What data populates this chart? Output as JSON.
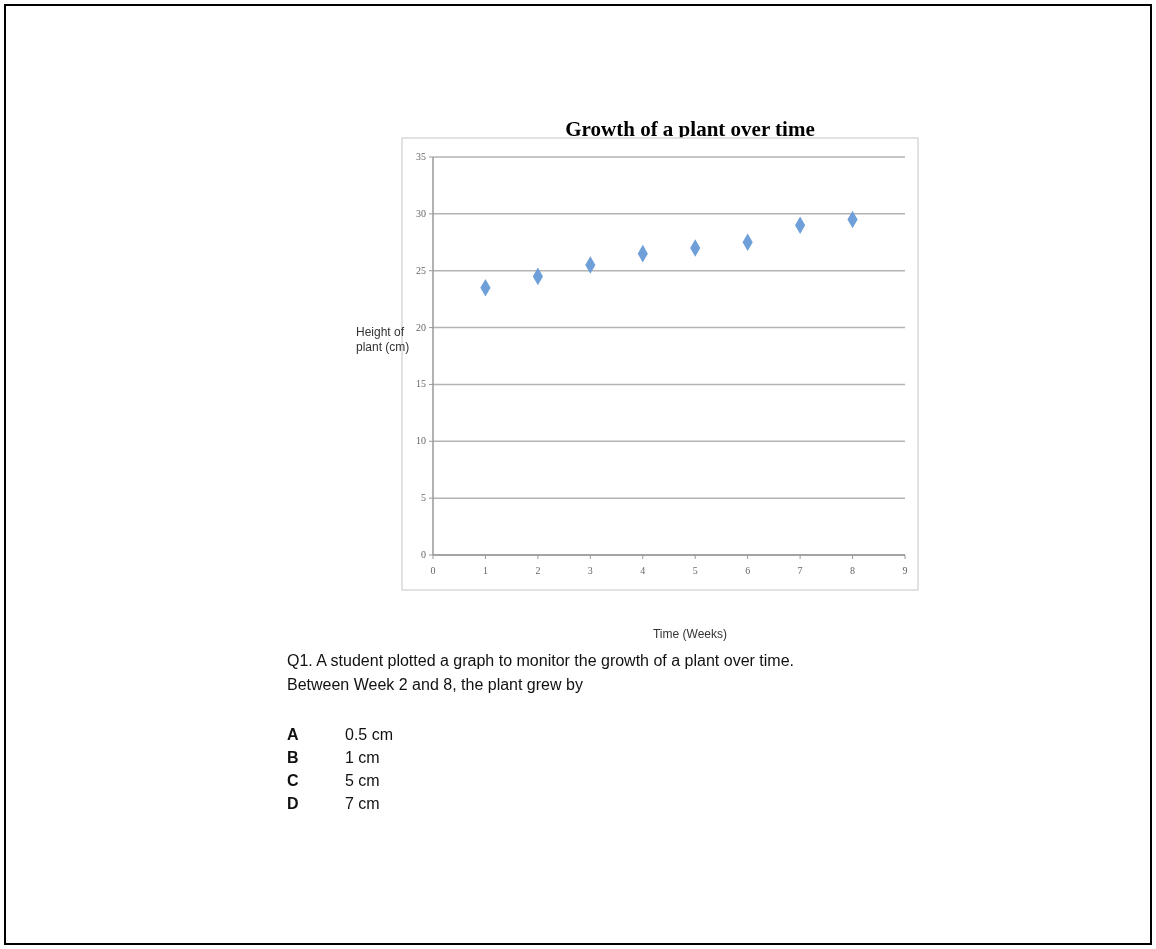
{
  "chart_data": {
    "type": "scatter",
    "title": "Growth of a plant over time",
    "xlabel": "Time (Weeks)",
    "ylabel": "Height of plant (cm)",
    "x": [
      1,
      2,
      3,
      4,
      5,
      6,
      7,
      8
    ],
    "series": [
      {
        "color": "#6f9fd8",
        "values": [
          23.5,
          24.5,
          25.5,
          26.5,
          27,
          27.5,
          29,
          29.5
        ]
      }
    ],
    "xlim": [
      0,
      9
    ],
    "xticks": [
      0,
      1,
      2,
      3,
      4,
      5,
      6,
      7,
      8,
      9
    ],
    "ylim": [
      0,
      35
    ],
    "yticks": [
      0,
      5,
      10,
      15,
      20,
      25,
      30,
      35
    ],
    "grid": "y",
    "marker": "diamond",
    "annotations": [
      "Q1. A student plotted a graph to monitor the growth of a plant over time.",
      "Between Week 2 and 8, the plant grew by",
      "A\t0.5 cm",
      "B\t1 cm",
      "C\t5 cm",
      "D\t7 cm"
    ]
  }
}
